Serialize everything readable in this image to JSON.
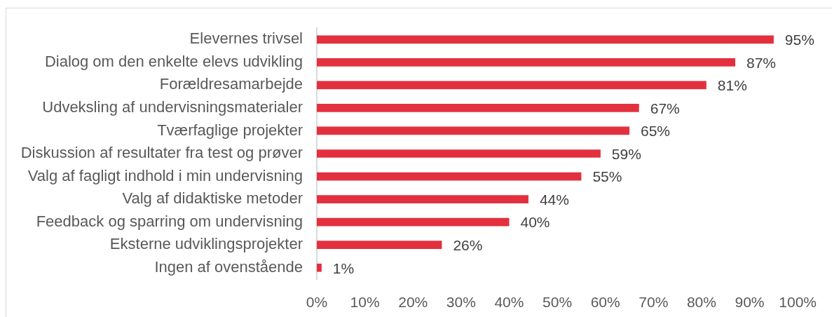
{
  "chart_data": {
    "type": "bar",
    "orientation": "horizontal",
    "categories": [
      "Elevernes trivsel",
      "Dialog om den enkelte elevs udvikling",
      "Forældresamarbejde",
      "Udveksling af undervisningsmaterialer",
      "Tværfaglige projekter",
      "Diskussion af resultater fra test og prøver",
      "Valg af fagligt indhold i min undervisning",
      "Valg af didaktiske metoder",
      "Feedback og sparring om undervisning",
      "Eksterne udviklingsprojekter",
      "Ingen af ovenstående"
    ],
    "values": [
      95,
      87,
      81,
      67,
      65,
      59,
      55,
      44,
      40,
      26,
      1
    ],
    "value_labels": [
      "95%",
      "87%",
      "81%",
      "67%",
      "65%",
      "59%",
      "55%",
      "44%",
      "40%",
      "26%",
      "1%"
    ],
    "color": "#e3303f",
    "xlim": [
      0,
      100
    ],
    "xticks": [
      {
        "value": 0,
        "label": "0%"
      },
      {
        "value": 10,
        "label": "10%"
      },
      {
        "value": 20,
        "label": "20%"
      },
      {
        "value": 30,
        "label": "30%"
      },
      {
        "value": 40,
        "label": "40%"
      },
      {
        "value": 50,
        "label": "50%"
      },
      {
        "value": 60,
        "label": "60%"
      },
      {
        "value": 70,
        "label": "70%"
      },
      {
        "value": 80,
        "label": "80%"
      },
      {
        "value": 90,
        "label": "90%"
      },
      {
        "value": 100,
        "label": "100%"
      }
    ]
  }
}
